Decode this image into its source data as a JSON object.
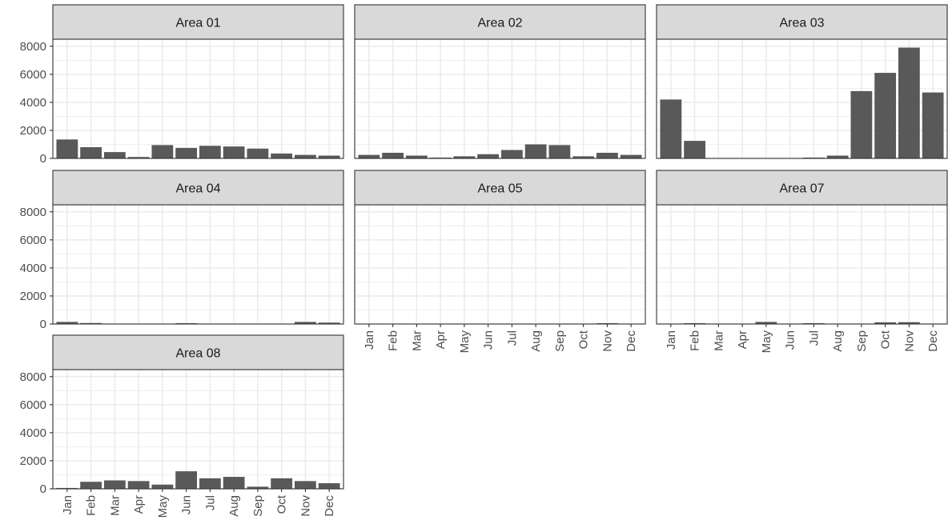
{
  "chart_data": {
    "type": "bar",
    "facet": "wrap",
    "categories": [
      "Jan",
      "Feb",
      "Mar",
      "Apr",
      "May",
      "Jun",
      "Jul",
      "Aug",
      "Sep",
      "Oct",
      "Nov",
      "Dec"
    ],
    "y_ticks": [
      0,
      2000,
      4000,
      6000,
      8000
    ],
    "ylim": [
      0,
      8500
    ],
    "grid": true,
    "bar_color": "#595959",
    "strip_fill": "#d9d9d9",
    "grid_color": "#ebebeb",
    "panels": [
      {
        "label": "Area 01",
        "values": [
          1350,
          800,
          450,
          100,
          950,
          750,
          900,
          850,
          700,
          350,
          250,
          200
        ]
      },
      {
        "label": "Area 02",
        "values": [
          250,
          400,
          200,
          30,
          150,
          300,
          600,
          1000,
          950,
          150,
          400,
          250
        ]
      },
      {
        "label": "Area 03",
        "values": [
          4200,
          1250,
          0,
          0,
          0,
          0,
          50,
          200,
          4800,
          6100,
          7900,
          4700
        ]
      },
      {
        "label": "Area 04",
        "values": [
          150,
          70,
          0,
          0,
          0,
          60,
          0,
          0,
          0,
          0,
          150,
          100
        ]
      },
      {
        "label": "Area 05",
        "values": [
          0,
          0,
          0,
          0,
          0,
          0,
          0,
          0,
          0,
          0,
          40,
          0
        ]
      },
      {
        "label": "Area 07",
        "values": [
          0,
          40,
          0,
          0,
          150,
          0,
          30,
          0,
          0,
          120,
          130,
          0
        ]
      },
      {
        "label": "Area 08",
        "values": [
          60,
          500,
          600,
          550,
          300,
          1250,
          750,
          850,
          150,
          750,
          550,
          400
        ]
      }
    ]
  }
}
